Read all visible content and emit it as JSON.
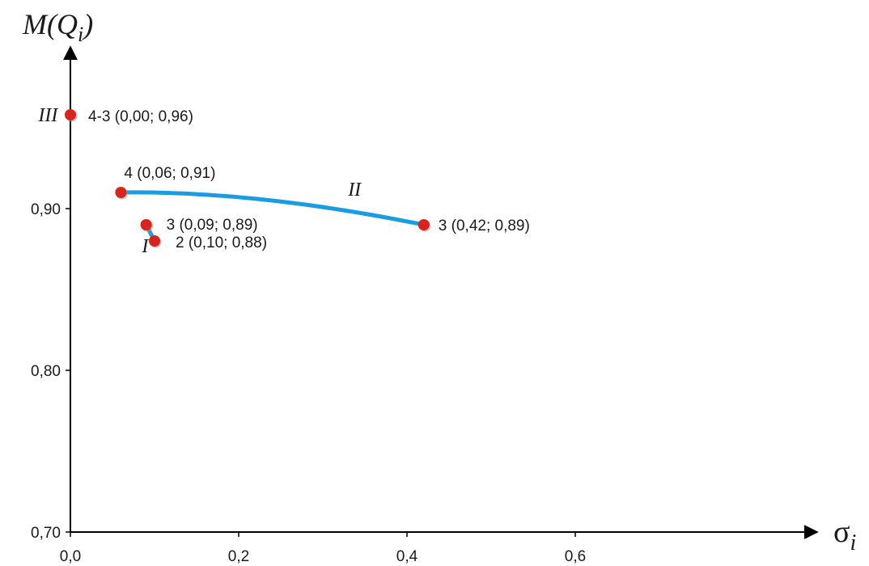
{
  "chart_data": {
    "type": "scatter",
    "xlabel": "σ",
    "xlabel_sub": "i",
    "ylabel": "M(Q",
    "ylabel_sub": "i",
    "ylabel_close": ")",
    "xlim": [
      0.0,
      0.8
    ],
    "ylim": [
      0.7,
      0.99
    ],
    "x_ticks": [
      0.0,
      0.2,
      0.4,
      0.6
    ],
    "x_tick_labels": [
      "0,0",
      "0,2",
      "0,4",
      "0,6"
    ],
    "y_ticks": [
      0.7,
      0.8,
      0.9
    ],
    "y_tick_labels": [
      "0,70",
      "0,80",
      "0,90"
    ],
    "grid": false,
    "line_color": "#1b9be0",
    "point_color": "#d9231d",
    "series": [
      {
        "name": "I",
        "label_at": [
          0.085,
          0.877
        ],
        "points": [
          {
            "x": 0.09,
            "y": 0.89,
            "label": "3 (0,09; 0,89)"
          },
          {
            "x": 0.1,
            "y": 0.88,
            "label": "2 (0,10; 0,88)"
          }
        ]
      },
      {
        "name": "II",
        "label_at": [
          0.33,
          0.912
        ],
        "points": [
          {
            "x": 0.06,
            "y": 0.91,
            "label": "4 (0,06; 0,91)"
          },
          {
            "x": 0.42,
            "y": 0.89,
            "label": "3 (0,42; 0,89)"
          }
        ]
      },
      {
        "name": "III",
        "label_at": [
          -0.015,
          0.958
        ],
        "points": [
          {
            "x": 0.0,
            "y": 0.958,
            "label": "4-3 (0,00; 0,96)"
          }
        ]
      }
    ]
  }
}
